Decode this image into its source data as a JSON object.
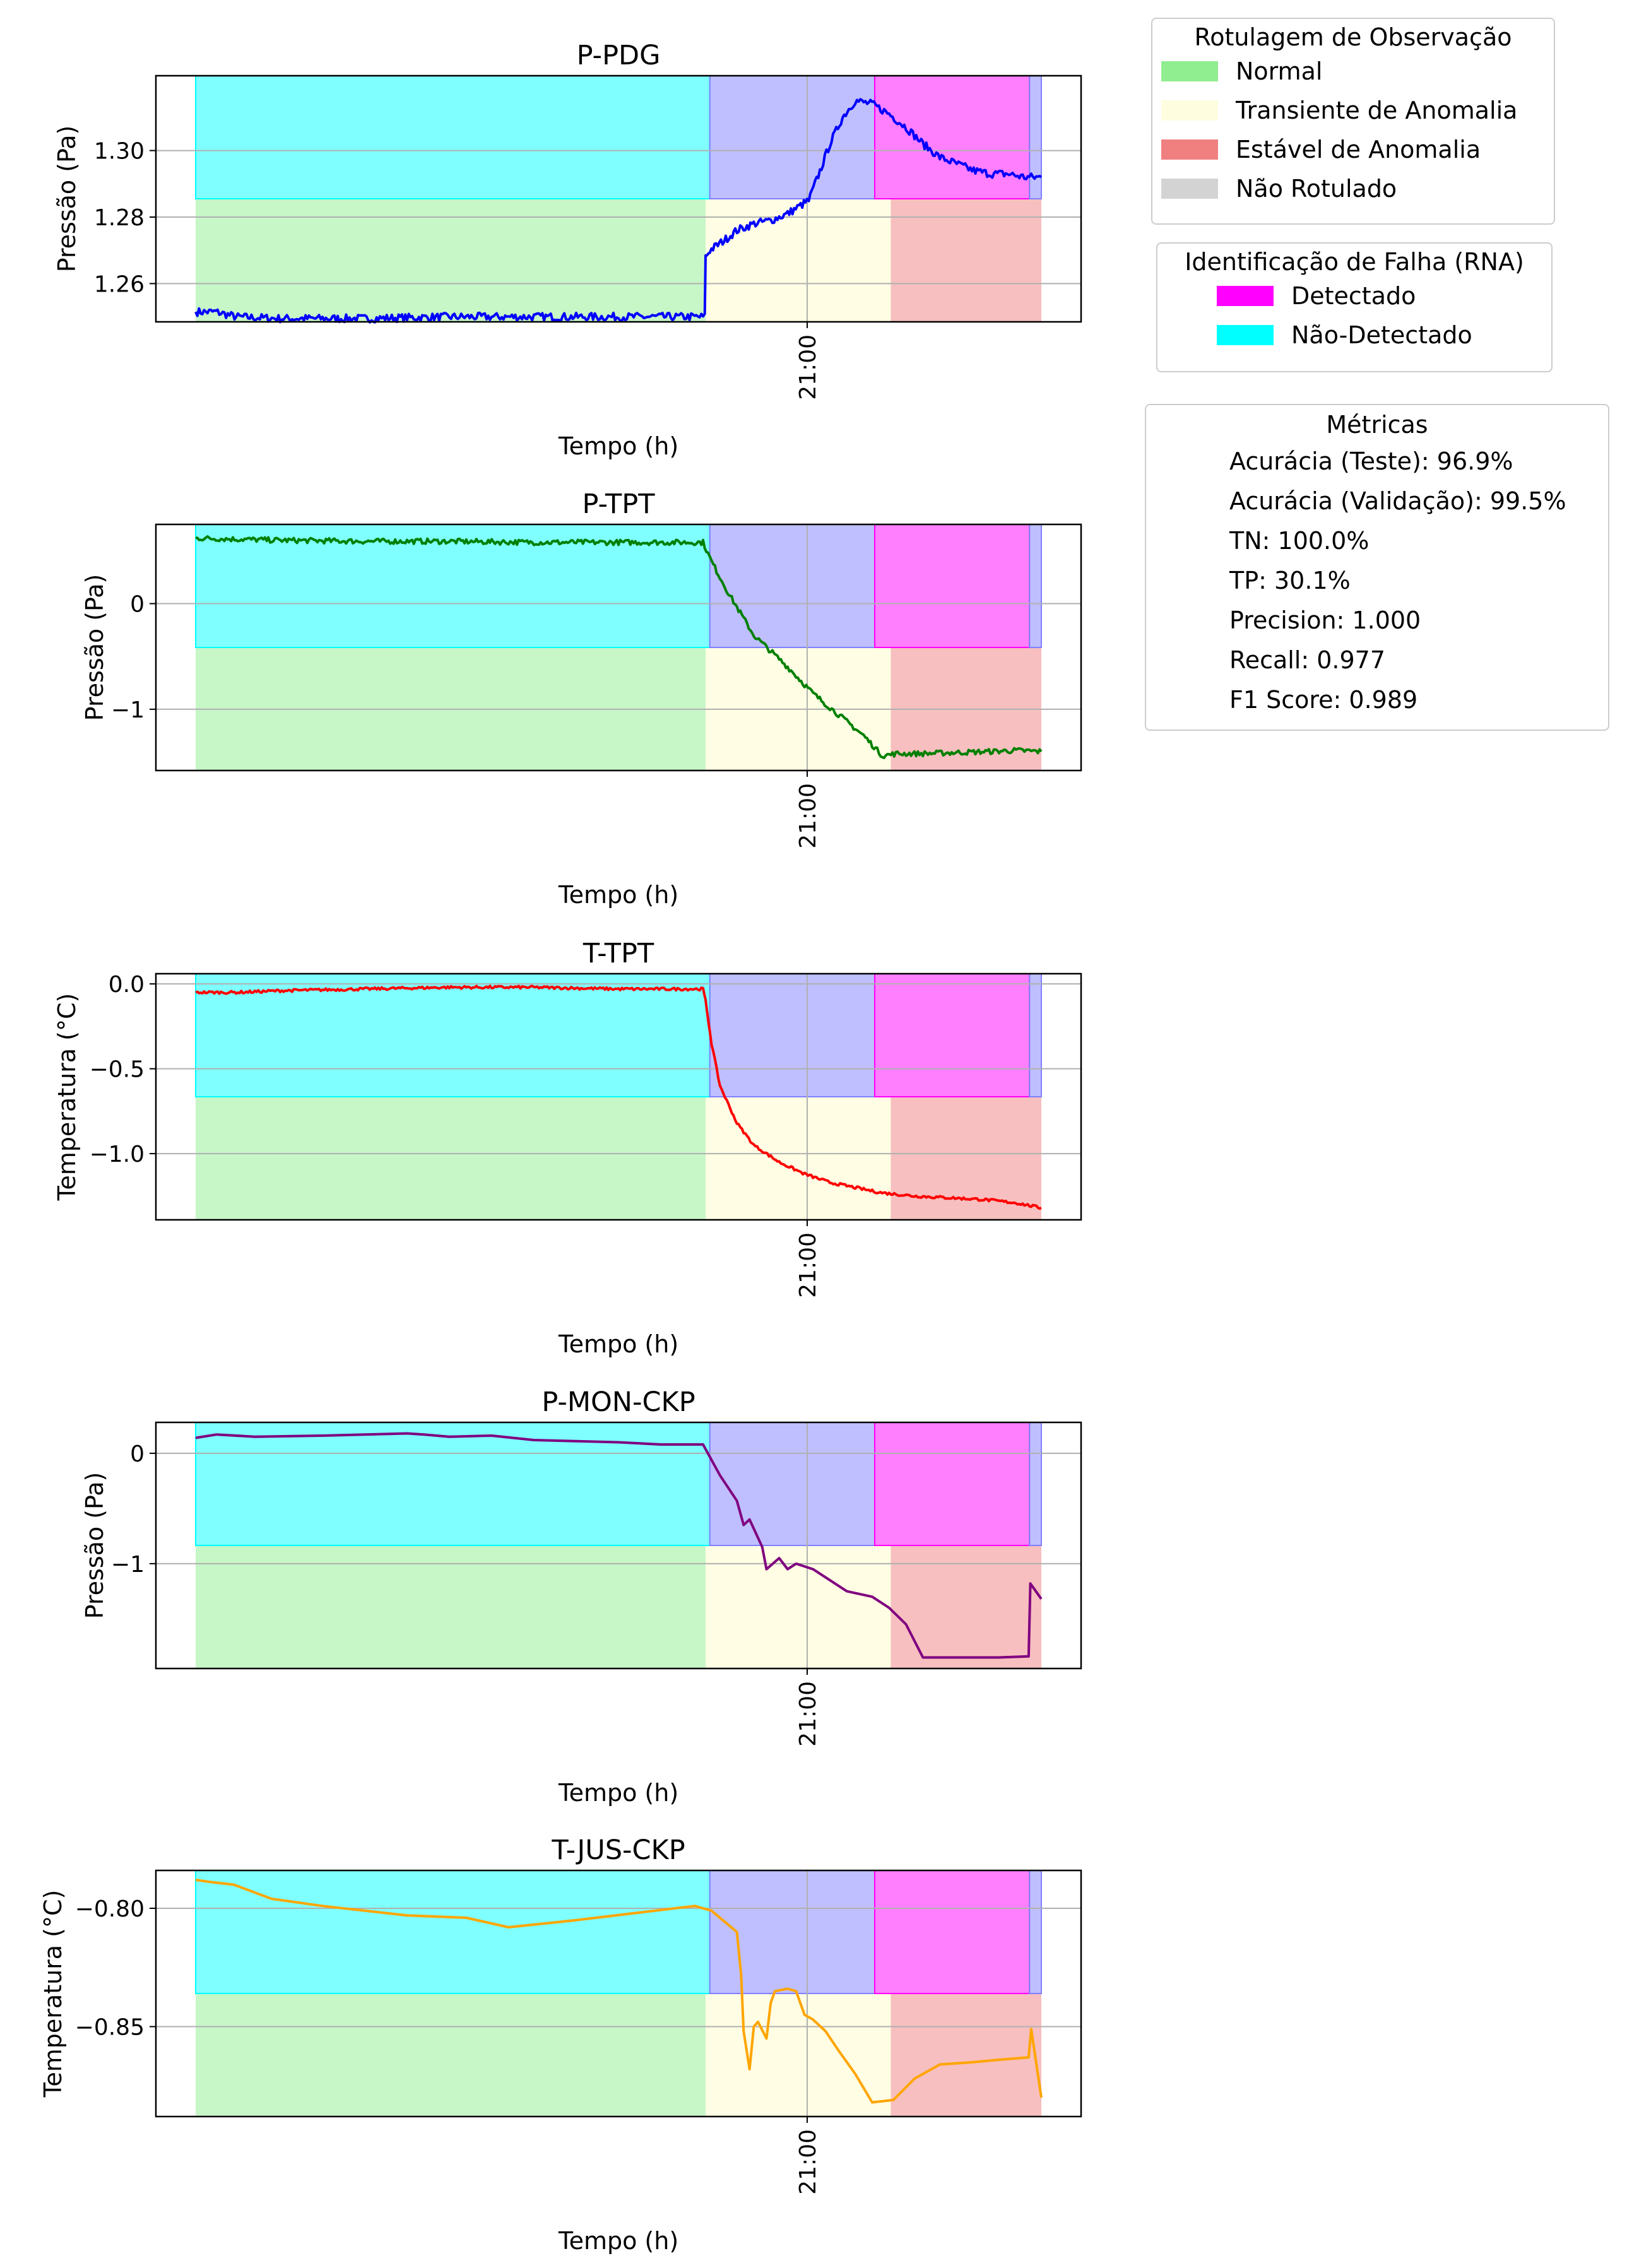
{
  "chart_data": [
    {
      "type": "line",
      "title": "P-PDG",
      "xlabel": "Tempo (h)",
      "ylabel": "Pressão (Pa)",
      "xtick": "21:00",
      "yticks": [
        "1.26",
        "1.28",
        "1.30"
      ],
      "ytick_values": [
        1.26,
        1.28,
        1.3
      ],
      "ylim": [
        1.2485,
        1.3225
      ],
      "color": "#0000ff",
      "grid": true,
      "series": [
        {
          "x": [
            0.0,
            0.024,
            0.048,
            0.1,
            0.2,
            0.3,
            0.4,
            0.5,
            0.55,
            0.602,
            0.603,
            0.608,
            0.625,
            0.64,
            0.66,
            0.68,
            0.7,
            0.725,
            0.74,
            0.75,
            0.765,
            0.78,
            0.8,
            0.82,
            0.84,
            0.86,
            0.88,
            0.9,
            0.92,
            0.94,
            0.96,
            0.98,
            1.0
          ],
          "y": [
            1.2515,
            1.2515,
            1.25,
            1.2495,
            1.2495,
            1.25,
            1.25,
            1.25,
            1.25,
            1.25,
            1.268,
            1.27,
            1.273,
            1.276,
            1.278,
            1.279,
            1.281,
            1.285,
            1.295,
            1.302,
            1.31,
            1.315,
            1.314,
            1.311,
            1.307,
            1.302,
            1.298,
            1.296,
            1.294,
            1.293,
            1.293,
            1.292,
            1.292
          ],
          "noise": 0.0012
        }
      ]
    },
    {
      "type": "line",
      "title": "P-TPT",
      "xlabel": "Tempo (h)",
      "ylabel": "Pressão (Pa)",
      "xtick": "21:00",
      "yticks": [
        "−1",
        "0"
      ],
      "ytick_values": [
        -1,
        0
      ],
      "ylim": [
        -1.58,
        0.75
      ],
      "color": "#008000",
      "grid": true,
      "series": [
        {
          "x": [
            0.0,
            0.1,
            0.2,
            0.3,
            0.4,
            0.5,
            0.55,
            0.6,
            0.61,
            0.63,
            0.66,
            0.7,
            0.73,
            0.76,
            0.79,
            0.812,
            0.83,
            0.86,
            0.9,
            0.94,
            0.97,
            1.0
          ],
          "y": [
            0.62,
            0.6,
            0.59,
            0.59,
            0.58,
            0.58,
            0.58,
            0.58,
            0.4,
            0.1,
            -0.3,
            -0.6,
            -0.85,
            -1.05,
            -1.25,
            -1.44,
            -1.42,
            -1.42,
            -1.41,
            -1.4,
            -1.39,
            -1.4
          ],
          "noise": 0.025
        }
      ]
    },
    {
      "type": "line",
      "title": "T-TPT",
      "xlabel": "Tempo (h)",
      "ylabel": "Temperatura (°C)",
      "xtick": "21:00",
      "yticks": [
        "−1.0",
        "−0.5",
        "0.0"
      ],
      "ytick_values": [
        -1.0,
        -0.5,
        0.0
      ],
      "ylim": [
        -1.39,
        0.06
      ],
      "color": "#ff0000",
      "grid": true,
      "series": [
        {
          "x": [
            0.0,
            0.05,
            0.1,
            0.2,
            0.3,
            0.4,
            0.5,
            0.55,
            0.6,
            0.603,
            0.61,
            0.62,
            0.64,
            0.66,
            0.69,
            0.72,
            0.75,
            0.78,
            0.81,
            0.85,
            0.89,
            0.93,
            0.97,
            1.0
          ],
          "y": [
            -0.05,
            -0.05,
            -0.04,
            -0.03,
            -0.02,
            -0.02,
            -0.03,
            -0.03,
            -0.03,
            -0.1,
            -0.35,
            -0.6,
            -0.82,
            -0.95,
            -1.05,
            -1.12,
            -1.17,
            -1.2,
            -1.23,
            -1.25,
            -1.26,
            -1.27,
            -1.29,
            -1.32
          ],
          "noise": 0.008
        }
      ]
    },
    {
      "type": "line",
      "title": "P-MON-CKP",
      "xlabel": "Tempo (h)",
      "ylabel": "Pressão (Pa)",
      "xtick": "21:00",
      "yticks": [
        "−1",
        "0"
      ],
      "ytick_values": [
        -1,
        0
      ],
      "ylim": [
        -1.95,
        0.28
      ],
      "color": "#800080",
      "grid": true,
      "series": [
        {
          "x": [
            0.0,
            0.025,
            0.07,
            0.15,
            0.2,
            0.25,
            0.27,
            0.3,
            0.35,
            0.4,
            0.45,
            0.5,
            0.55,
            0.6,
            0.62,
            0.64,
            0.648,
            0.655,
            0.67,
            0.675,
            0.69,
            0.7,
            0.71,
            0.73,
            0.75,
            0.77,
            0.8,
            0.82,
            0.84,
            0.86,
            0.88,
            0.9,
            0.95,
            0.985,
            0.987,
            1.0
          ],
          "y": [
            0.14,
            0.17,
            0.15,
            0.16,
            0.17,
            0.18,
            0.17,
            0.15,
            0.16,
            0.12,
            0.11,
            0.1,
            0.08,
            0.08,
            -0.2,
            -0.43,
            -0.65,
            -0.6,
            -0.85,
            -1.05,
            -0.95,
            -1.05,
            -1.0,
            -1.05,
            -1.15,
            -1.25,
            -1.3,
            -1.4,
            -1.55,
            -1.85,
            -1.85,
            -1.85,
            -1.85,
            -1.84,
            -1.18,
            -1.32
          ],
          "noise": 0.0
        }
      ]
    },
    {
      "type": "line",
      "title": "T-JUS-CKP",
      "xlabel": "Tempo (h)",
      "ylabel": "Temperatura (°C)",
      "xtick": "21:00",
      "yticks": [
        "−0.85",
        "−0.80"
      ],
      "ytick_values": [
        -0.85,
        -0.8
      ],
      "ylim": [
        -0.888,
        -0.784
      ],
      "color": "#ffa500",
      "grid": true,
      "series": [
        {
          "x": [
            0.0,
            0.02,
            0.045,
            0.09,
            0.15,
            0.25,
            0.32,
            0.37,
            0.45,
            0.52,
            0.59,
            0.61,
            0.64,
            0.645,
            0.648,
            0.655,
            0.66,
            0.665,
            0.675,
            0.68,
            0.685,
            0.7,
            0.71,
            0.72,
            0.73,
            0.745,
            0.76,
            0.78,
            0.8,
            0.825,
            0.85,
            0.88,
            0.92,
            0.95,
            0.985,
            0.988,
            1.0
          ],
          "y": [
            -0.788,
            -0.789,
            -0.79,
            -0.796,
            -0.799,
            -0.803,
            -0.804,
            -0.808,
            -0.805,
            -0.802,
            -0.799,
            -0.801,
            -0.81,
            -0.828,
            -0.852,
            -0.868,
            -0.85,
            -0.848,
            -0.855,
            -0.84,
            -0.835,
            -0.834,
            -0.835,
            -0.845,
            -0.847,
            -0.852,
            -0.86,
            -0.87,
            -0.882,
            -0.881,
            -0.872,
            -0.866,
            -0.865,
            -0.864,
            -0.863,
            -0.851,
            -0.88
          ],
          "noise": 0.0
        }
      ]
    }
  ],
  "regions": {
    "label_bands": [
      {
        "label": "Normal",
        "from": 0.0,
        "to": 0.603,
        "color": "#90ee90"
      },
      {
        "label": "Transiente de Anomalia",
        "from": 0.603,
        "to": 0.822,
        "color": "#fffde0"
      },
      {
        "label": "Estável de Anomalia",
        "from": 0.822,
        "to": 1.0,
        "color": "#f08080"
      }
    ],
    "detection_bands": [
      {
        "label": "Não-Detectado",
        "from": 0.0,
        "to": 0.608,
        "color": "#00ffff"
      },
      {
        "label": "Não-Detectado",
        "from": 0.608,
        "to": 0.803,
        "color": "#8080ff"
      },
      {
        "label": "Detectado",
        "from": 0.803,
        "to": 0.986,
        "color": "#ff00ff"
      },
      {
        "label": "Não-Detectado",
        "from": 0.986,
        "to": 1.0,
        "color": "#8080ff"
      }
    ]
  },
  "legend_observation": {
    "title": "Rotulagem de Observação",
    "items": [
      {
        "label": "Normal",
        "color": "#90ee90"
      },
      {
        "label": "Transiente de Anomalia",
        "color": "#fffde0"
      },
      {
        "label": "Estável de Anomalia",
        "color": "#f08080"
      },
      {
        "label": "Não Rotulado",
        "color": "#d3d3d3"
      }
    ]
  },
  "legend_fault": {
    "title": "Identificação de Falha (RNA)",
    "items": [
      {
        "label": "Detectado",
        "color": "#ff00ff"
      },
      {
        "label": "Não-Detectado",
        "color": "#00ffff"
      }
    ]
  },
  "metrics": {
    "title": "Métricas",
    "lines": [
      "Acurácia (Teste): 96.9%",
      "Acurácia (Validação): 99.5%",
      "TN: 100.0%",
      "TP: 30.1%",
      "Precision: 1.000",
      "Recall: 0.977",
      "F1 Score: 0.989"
    ]
  }
}
